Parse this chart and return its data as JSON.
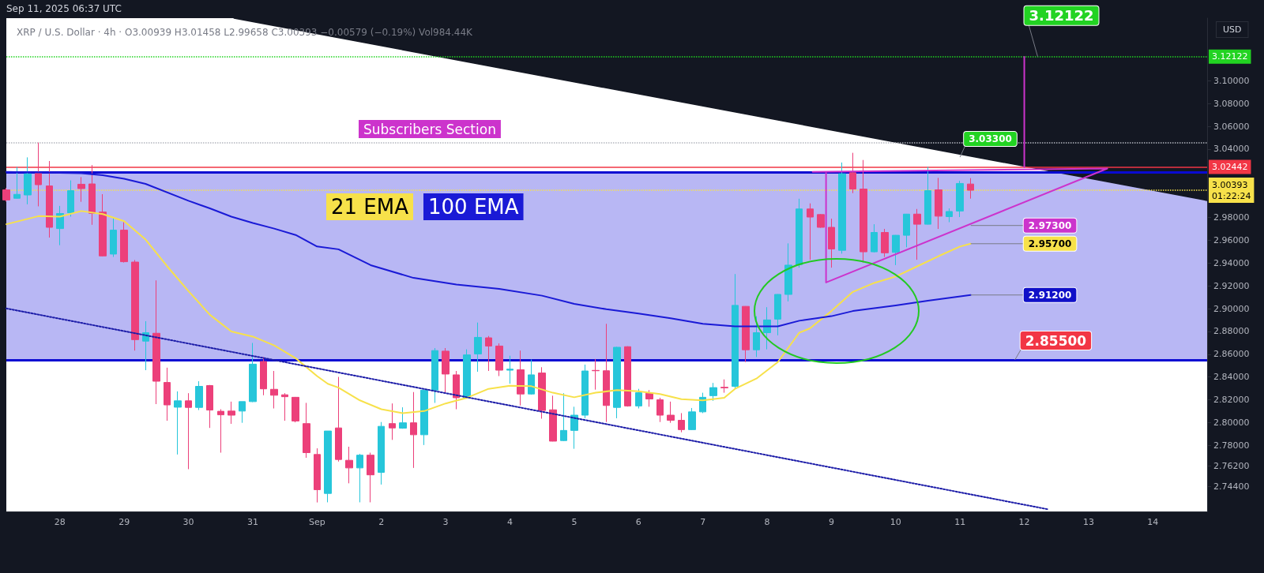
{
  "chart_data": {
    "type": "candlestick",
    "title": "XRP / U.S. Dollar · 4h · O3.00939 H3.01458 L2.99658 C3.00393 −0.00579 (−0.19%) Vol984.44K",
    "subtitle": "Subscribers Section",
    "ylabel": "USD",
    "annotations": [
      "Sep 11, 2025 06:37 UTC",
      {
        "text": "3.12122",
        "x": "2025-09-12T05:00",
        "y": 3.12122
      },
      {
        "text": "3.03300",
        "x": "2025-09-11T00:00",
        "y": 3.033
      },
      {
        "text": "2.97300",
        "x": "2025-09-11T04:00",
        "y": 2.973
      },
      {
        "text": "2.95700",
        "x": "2025-09-11T04:00",
        "y": 2.957
      },
      {
        "text": "2.91200",
        "x": "2025-09-11T04:00",
        "y": 2.912
      },
      {
        "text": "2.85500",
        "x": "2025-09-11T20:30",
        "y": 2.855
      }
    ],
    "x": [
      "2025-08-27T04:00",
      "2025-08-27T08:00",
      "2025-08-27T12:00",
      "2025-08-27T16:00",
      "2025-08-27T20:00",
      "2025-08-28T00:00",
      "2025-08-28T04:00",
      "2025-08-28T08:00",
      "2025-08-28T12:00",
      "2025-08-28T16:00",
      "2025-08-28T20:00",
      "2025-08-29T00:00",
      "2025-08-29T04:00",
      "2025-08-29T08:00",
      "2025-08-29T12:00",
      "2025-08-29T16:00",
      "2025-08-29T20:00",
      "2025-08-30T00:00",
      "2025-08-30T04:00",
      "2025-08-30T08:00",
      "2025-08-30T12:00",
      "2025-08-30T16:00",
      "2025-08-30T20:00",
      "2025-08-31T00:00",
      "2025-08-31T04:00",
      "2025-08-31T08:00",
      "2025-08-31T12:00",
      "2025-08-31T16:00",
      "2025-08-31T20:00",
      "2025-09-01T00:00",
      "2025-09-01T04:00",
      "2025-09-01T08:00",
      "2025-09-01T12:00",
      "2025-09-01T16:00",
      "2025-09-01T20:00",
      "2025-09-02T00:00",
      "2025-09-02T04:00",
      "2025-09-02T08:00",
      "2025-09-02T12:00",
      "2025-09-02T16:00",
      "2025-09-02T20:00",
      "2025-09-03T00:00",
      "2025-09-03T04:00",
      "2025-09-03T08:00",
      "2025-09-03T12:00",
      "2025-09-03T16:00",
      "2025-09-03T20:00",
      "2025-09-04T00:00",
      "2025-09-04T04:00",
      "2025-09-04T08:00",
      "2025-09-04T12:00",
      "2025-09-04T16:00",
      "2025-09-04T20:00",
      "2025-09-05T00:00",
      "2025-09-05T04:00",
      "2025-09-05T08:00",
      "2025-09-05T12:00",
      "2025-09-05T16:00",
      "2025-09-05T20:00",
      "2025-09-06T00:00",
      "2025-09-06T04:00",
      "2025-09-06T08:00",
      "2025-09-06T12:00",
      "2025-09-06T16:00",
      "2025-09-06T20:00",
      "2025-09-07T00:00",
      "2025-09-07T04:00",
      "2025-09-07T08:00",
      "2025-09-07T12:00",
      "2025-09-07T16:00",
      "2025-09-07T20:00",
      "2025-09-08T00:00",
      "2025-09-08T04:00",
      "2025-09-08T08:00",
      "2025-09-08T12:00",
      "2025-09-08T16:00",
      "2025-09-08T20:00",
      "2025-09-09T00:00",
      "2025-09-09T04:00",
      "2025-09-09T08:00",
      "2025-09-09T12:00",
      "2025-09-09T16:00",
      "2025-09-09T20:00",
      "2025-09-10T00:00",
      "2025-09-10T04:00",
      "2025-09-10T08:00",
      "2025-09-10T12:00",
      "2025-09-10T16:00",
      "2025-09-10T20:00",
      "2025-09-11T00:00",
      "2025-09-11T04:00"
    ],
    "ohlc": [
      [
        3.0043,
        3.006,
        2.994,
        2.9954
      ],
      [
        2.9969,
        3.0245,
        2.9965,
        3.0003
      ],
      [
        2.9998,
        3.0328,
        2.9916,
        3.0184
      ],
      [
        3.0193,
        3.0458,
        2.9898,
        3.0088
      ],
      [
        3.0077,
        3.0296,
        2.9624,
        2.9714
      ],
      [
        2.9703,
        2.9902,
        2.9557,
        2.9835
      ],
      [
        2.9842,
        3.0126,
        2.9808,
        3.0036
      ],
      [
        3.0092,
        3.0155,
        2.9938,
        3.0054
      ],
      [
        3.0095,
        3.026,
        2.9736,
        2.9837
      ],
      [
        2.9848,
        3.0005,
        2.9459,
        2.9463
      ],
      [
        2.9479,
        2.9804,
        2.9454,
        2.9689
      ],
      [
        2.9689,
        2.9759,
        2.9405,
        2.9412
      ],
      [
        2.9409,
        2.9427,
        2.8632,
        2.8728
      ],
      [
        2.8715,
        2.889,
        2.846,
        2.8789
      ],
      [
        2.8784,
        2.9248,
        2.8162,
        2.8363
      ],
      [
        2.8352,
        2.8482,
        2.8016,
        2.8155
      ],
      [
        2.8135,
        2.8274,
        2.772,
        2.8191
      ],
      [
        2.8191,
        2.8258,
        2.7591,
        2.8133
      ],
      [
        2.8133,
        2.8363,
        2.811,
        2.8318
      ],
      [
        2.8325,
        2.833,
        2.7953,
        2.811
      ],
      [
        2.8099,
        2.8117,
        2.7736,
        2.8068
      ],
      [
        2.8101,
        2.8184,
        2.7989,
        2.8065
      ],
      [
        2.8101,
        2.8184,
        2.7998,
        2.8184
      ],
      [
        2.8184,
        2.8699,
        2.818,
        2.8513
      ],
      [
        2.8536,
        2.8576,
        2.824,
        2.8296
      ],
      [
        2.8292,
        2.8453,
        2.8124,
        2.824
      ],
      [
        2.8244,
        2.8258,
        2.8016,
        2.8227
      ],
      [
        2.8222,
        2.8225,
        2.8002,
        2.8014
      ],
      [
        2.7991,
        2.8173,
        2.7691,
        2.7736
      ],
      [
        2.772,
        2.7774,
        2.7299,
        2.7411
      ],
      [
        2.7378,
        2.7926,
        2.73,
        2.7926
      ],
      [
        2.7953,
        2.8401,
        2.7658,
        2.7676
      ],
      [
        2.7669,
        2.7788,
        2.7467,
        2.7602
      ],
      [
        2.7602,
        2.7725,
        2.73,
        2.7714
      ],
      [
        2.7714,
        2.7736,
        2.73,
        2.7541
      ],
      [
        2.7563,
        2.8005,
        2.7456,
        2.7967
      ],
      [
        2.7991,
        2.8168,
        2.7848,
        2.7953
      ],
      [
        2.7951,
        2.8134,
        2.7946,
        2.7998
      ],
      [
        2.7998,
        2.8268,
        2.7602,
        2.7893
      ],
      [
        2.7893,
        2.8285,
        2.7803,
        2.8285
      ],
      [
        2.8285,
        2.8654,
        2.8173,
        2.8632
      ],
      [
        2.8627,
        2.8654,
        2.8262,
        2.8426
      ],
      [
        2.8419,
        2.8453,
        2.8117,
        2.8218
      ],
      [
        2.8218,
        2.8643,
        2.8215,
        2.8594
      ],
      [
        2.8603,
        2.8878,
        2.8446,
        2.8748
      ],
      [
        2.8744,
        2.876,
        2.8453,
        2.8672
      ],
      [
        2.8672,
        2.8695,
        2.8408,
        2.846
      ],
      [
        2.846,
        2.8587,
        2.8341,
        2.8469
      ],
      [
        2.8464,
        2.8632,
        2.815,
        2.8251
      ],
      [
        2.8251,
        2.8554,
        2.8245,
        2.8419
      ],
      [
        2.8435,
        2.8486,
        2.8034,
        2.8106
      ],
      [
        2.8112,
        2.8236,
        2.7835,
        2.7837
      ],
      [
        2.7842,
        2.8258,
        2.7838,
        2.7931
      ],
      [
        2.7931,
        2.8139,
        2.777,
        2.8065
      ],
      [
        2.8065,
        2.8509,
        2.8038,
        2.8453
      ],
      [
        2.8458,
        2.8558,
        2.8289,
        2.8455
      ],
      [
        2.8455,
        2.8867,
        2.8005,
        2.815
      ],
      [
        2.8133,
        2.8665,
        2.8038,
        2.8661
      ],
      [
        2.8666,
        2.867,
        2.814,
        2.8146
      ],
      [
        2.8146,
        2.8296,
        2.8124,
        2.8262
      ],
      [
        2.8258,
        2.8285,
        2.8139,
        2.8207
      ],
      [
        2.82,
        2.8218,
        2.8005,
        2.8065
      ],
      [
        2.8065,
        2.8184,
        2.7998,
        2.802
      ],
      [
        2.802,
        2.8083,
        2.7915,
        2.7938
      ],
      [
        2.7938,
        2.8128,
        2.7935,
        2.8094
      ],
      [
        2.8094,
        2.8262,
        2.8083,
        2.8222
      ],
      [
        2.8236,
        2.8348,
        2.8191,
        2.8307
      ],
      [
        2.831,
        2.8379,
        2.8262,
        2.8305
      ],
      [
        2.8318,
        2.9304,
        2.8296,
        2.9029
      ],
      [
        2.902,
        2.9022,
        2.8531,
        2.8639
      ],
      [
        2.8639,
        2.8934,
        2.8576,
        2.8789
      ],
      [
        2.8789,
        2.9013,
        2.8643,
        2.8901
      ],
      [
        2.8908,
        2.9127,
        2.8766,
        2.9125
      ],
      [
        2.9125,
        2.9573,
        2.9064,
        2.9382
      ],
      [
        2.9387,
        2.9965,
        2.936,
        2.9875
      ],
      [
        2.9875,
        2.9924,
        2.9429,
        2.9804
      ],
      [
        2.9826,
        2.983,
        2.971,
        2.9714
      ],
      [
        2.9714,
        2.979,
        2.936,
        2.9524
      ],
      [
        2.9512,
        3.0283,
        2.9483,
        3.0184
      ],
      [
        3.0193,
        3.0368,
        3.0014,
        3.005
      ],
      [
        3.005,
        3.0305,
        2.9405,
        2.9499
      ],
      [
        2.9499,
        2.9741,
        2.9494,
        2.9669
      ],
      [
        2.9669,
        2.97,
        2.9454,
        2.949
      ],
      [
        2.9494,
        2.9646,
        2.9382,
        2.9644
      ],
      [
        2.9644,
        2.9832,
        2.9539,
        2.983
      ],
      [
        2.983,
        2.9875,
        2.9429,
        2.9741
      ],
      [
        2.9741,
        3.0245,
        2.9738,
        3.0036
      ],
      [
        3.0043,
        3.0148,
        2.97,
        2.9812
      ],
      [
        2.9808,
        2.988,
        2.9759,
        2.9853
      ],
      [
        2.9857,
        3.0122,
        2.9804,
        3.0099
      ],
      [
        3.00939,
        3.01458,
        2.99658,
        3.00393
      ]
    ],
    "series": [
      {
        "type": "area",
        "color": "#131722",
        "x": [
          "2025-08-30T17:00",
          "2025-09-14T20:15"
        ],
        "values": [
          3.155,
          2.995
        ]
      },
      {
        "name": "21 EMA",
        "type": "line",
        "color": "#f7e14a",
        "x": [
          "2025-08-27T04:00",
          "2025-08-27T16:00",
          "2025-08-28T00:00",
          "2025-08-28T08:00",
          "2025-08-28T16:00",
          "2025-08-29T00:00",
          "2025-08-29T08:00",
          "2025-08-29T16:00",
          "2025-08-30T00:00",
          "2025-08-30T08:00",
          "2025-08-30T16:00",
          "2025-08-31T00:00",
          "2025-08-31T08:00",
          "2025-08-31T16:00",
          "2025-09-01T00:00",
          "2025-09-01T04:00",
          "2025-09-01T08:00",
          "2025-09-01T16:00",
          "2025-09-02T00:00",
          "2025-09-02T08:00",
          "2025-09-02T16:00",
          "2025-09-03T00:00",
          "2025-09-03T08:00",
          "2025-09-03T16:00",
          "2025-09-04T00:00",
          "2025-09-04T08:00",
          "2025-09-04T16:00",
          "2025-09-05T00:00",
          "2025-09-05T08:00",
          "2025-09-05T16:00",
          "2025-09-06T00:00",
          "2025-09-06T08:00",
          "2025-09-06T16:00",
          "2025-09-07T00:00",
          "2025-09-07T08:00",
          "2025-09-07T12:00",
          "2025-09-07T20:00",
          "2025-09-08T04:00",
          "2025-09-08T12:00",
          "2025-09-08T16:00",
          "2025-09-09T00:00",
          "2025-09-09T08:00",
          "2025-09-09T16:00",
          "2025-09-10T00:00",
          "2025-09-10T08:00",
          "2025-09-10T16:00",
          "2025-09-11T00:00",
          "2025-09-11T04:00"
        ],
        "values": [
          2.9741,
          2.9812,
          2.9808,
          2.9857,
          2.983,
          2.9768,
          2.9606,
          2.9373,
          2.9154,
          2.8946,
          2.88,
          2.8755,
          2.8677,
          2.8565,
          2.8408,
          2.8341,
          2.8307,
          2.8195,
          2.8117,
          2.8083,
          2.8101,
          2.8168,
          2.8218,
          2.8296,
          2.8323,
          2.8319,
          2.8262,
          2.8222,
          2.8262,
          2.8285,
          2.8274,
          2.8251,
          2.8206,
          2.8195,
          2.8218,
          2.8296,
          2.8386,
          2.8531,
          2.8789,
          2.8827,
          2.8979,
          2.9147,
          2.9226,
          2.9282,
          2.9371,
          2.9461,
          2.9545,
          2.957
        ]
      },
      {
        "name": "100 EMA",
        "type": "line",
        "color": "#1a1ad6",
        "x": [
          "2025-08-27T04:00",
          "2025-08-28T08:00",
          "2025-08-28T16:00",
          "2025-08-29T00:00",
          "2025-08-29T08:00",
          "2025-08-30T00:00",
          "2025-08-30T08:00",
          "2025-08-30T16:00",
          "2025-08-31T00:00",
          "2025-08-31T08:00",
          "2025-08-31T16:00",
          "2025-09-01T00:00",
          "2025-09-01T08:00",
          "2025-09-01T20:00",
          "2025-09-02T12:00",
          "2025-09-03T04:00",
          "2025-09-03T20:00",
          "2025-09-04T12:00",
          "2025-09-05T00:00",
          "2025-09-05T12:00",
          "2025-09-06T00:00",
          "2025-09-06T12:00",
          "2025-09-07T00:00",
          "2025-09-07T12:00",
          "2025-09-08T04:00",
          "2025-09-08T12:00",
          "2025-09-09T00:00",
          "2025-09-09T08:00",
          "2025-09-10T00:00",
          "2025-09-10T12:00",
          "2025-09-11T04:00"
        ],
        "values": [
          3.02,
          3.0189,
          3.0171,
          3.014,
          3.0095,
          2.9947,
          2.988,
          2.9808,
          2.9752,
          2.9703,
          2.9647,
          2.9546,
          2.9521,
          2.9382,
          2.927,
          2.9212,
          2.9174,
          2.9114,
          2.9042,
          2.8995,
          2.8957,
          2.8916,
          2.8867,
          2.8845,
          2.8845,
          2.8894,
          2.8934,
          2.8979,
          2.9028,
          2.9069,
          2.912
        ]
      },
      {
        "type": "line",
        "color": "#1c1ca8",
        "line_style": "dotted",
        "x": [
          "2025-08-27T04:00",
          "2025-09-12T09:00"
        ],
        "values": [
          2.9002,
          2.7238
        ]
      },
      {
        "type": "line",
        "color": "#cc33cc",
        "x": [
          "2025-09-08T17:00",
          "2025-09-13T07:00",
          "2025-09-08T22:00",
          "2025-09-08T22:00",
          null,
          "2025-09-12T00:00",
          "2025-09-12T00:00"
        ],
        "values": [
          3.02,
          3.023,
          2.923,
          3.02,
          null,
          3.024,
          3.121
        ]
      }
    ],
    "bands": [
      {
        "axis": "y",
        "from": 2.855,
        "to": 3.02,
        "color": "#aeadf2"
      }
    ],
    "ref_lines": [
      {
        "axis": "y",
        "value": 3.02,
        "color": "#0a0ad2"
      },
      {
        "axis": "y",
        "value": 2.855,
        "color": "#0a0ad2"
      },
      {
        "axis": "y",
        "value": 3.046,
        "color": "#b2b5be",
        "line_style": "dotted"
      },
      {
        "axis": "y",
        "value": 3.00393,
        "label": "3.00393\n01:22:24",
        "color": "#f7e14a",
        "line_style": "dotted"
      },
      {
        "axis": "y",
        "value": 3.02442,
        "label": "3.02442",
        "color": "#f23645",
        "line_style": "solid"
      },
      {
        "axis": "y",
        "value": 3.12122,
        "label": "3.12122",
        "color": "#22d322",
        "line_style": "dotted"
      }
    ],
    "xlim": [
      "2025-08-27T04:00",
      "2025-09-14T20:15"
    ],
    "xticks": [
      {
        "value": "2025-08-28",
        "label": "28"
      },
      {
        "value": "2025-08-29",
        "label": "29"
      },
      {
        "value": "2025-08-30",
        "label": "30"
      },
      {
        "value": "2025-08-31",
        "label": "31"
      },
      {
        "value": "2025-09-01",
        "label": "Sep"
      },
      {
        "value": "2025-09-02",
        "label": "2"
      },
      {
        "value": "2025-09-03",
        "label": "3"
      },
      {
        "value": "2025-09-04",
        "label": "4"
      },
      {
        "value": "2025-09-05",
        "label": "5"
      },
      {
        "value": "2025-09-06",
        "label": "6"
      },
      {
        "value": "2025-09-07",
        "label": "7"
      },
      {
        "value": "2025-09-08",
        "label": "8"
      },
      {
        "value": "2025-09-09",
        "label": "9"
      },
      {
        "value": "2025-09-10",
        "label": "10"
      },
      {
        "value": "2025-09-11",
        "label": "11"
      },
      {
        "value": "2025-09-12",
        "label": "12"
      },
      {
        "value": "2025-09-13",
        "label": "13"
      },
      {
        "value": "2025-09-14",
        "label": "14"
      }
    ],
    "ylim": [
      2.722,
      3.155
    ],
    "yticks": [
      {
        "value": 2.744,
        "label": "2.74400"
      },
      {
        "value": 2.762,
        "label": "2.76200"
      },
      {
        "value": 2.78,
        "label": "2.78000"
      },
      {
        "value": 2.8,
        "label": "2.80000"
      },
      {
        "value": 2.82,
        "label": "2.82000"
      },
      {
        "value": 2.84,
        "label": "2.84000"
      },
      {
        "value": 2.86,
        "label": "2.86000"
      },
      {
        "value": 2.88,
        "label": "2.88000"
      },
      {
        "value": 2.9,
        "label": "2.90000"
      },
      {
        "value": 2.92,
        "label": "2.92000"
      },
      {
        "value": 2.94,
        "label": "2.94000"
      },
      {
        "value": 2.96,
        "label": "2.96000"
      },
      {
        "value": 2.98,
        "label": "2.98000"
      },
      {
        "value": 3.04,
        "label": "3.04000"
      },
      {
        "value": 3.06,
        "label": "3.06000"
      },
      {
        "value": 3.08,
        "label": "3.08000"
      },
      {
        "value": 3.1,
        "label": "3.10000"
      }
    ]
  }
}
